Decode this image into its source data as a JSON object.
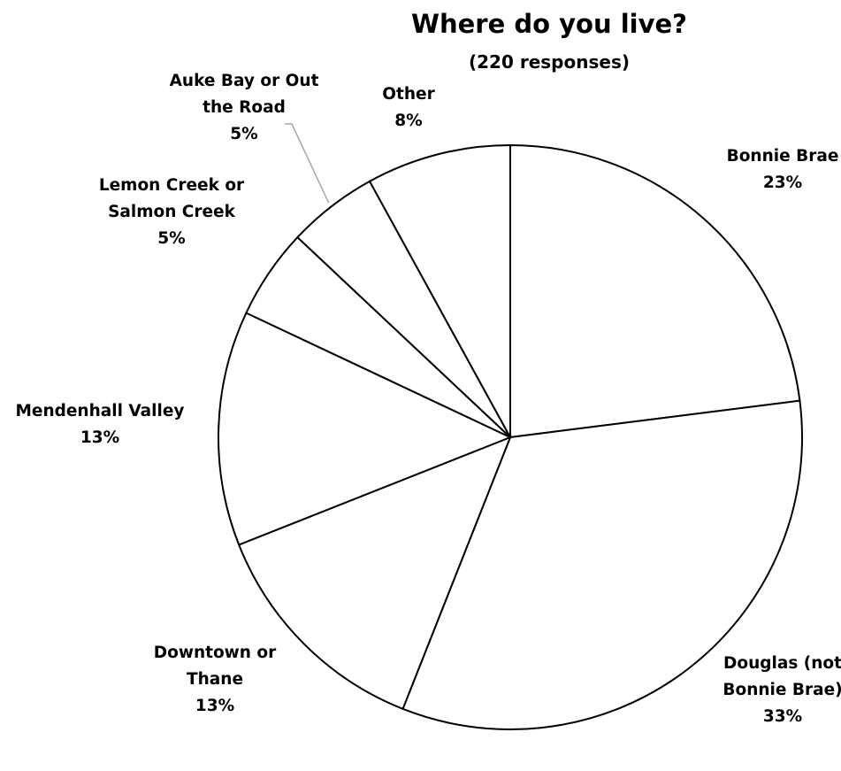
{
  "chart_data": {
    "type": "pie",
    "title": "Where do you live?",
    "subtitle": "(220 responses)",
    "slices": [
      {
        "label": [
          "Bonnie Brae"
        ],
        "value": 23,
        "value_label": "23%"
      },
      {
        "label": [
          "Douglas (not",
          "Bonnie Brae)"
        ],
        "value": 33,
        "value_label": "33%"
      },
      {
        "label": [
          "Downtown or",
          "Thane"
        ],
        "value": 13,
        "value_label": "13%"
      },
      {
        "label": [
          "Mendenhall Valley"
        ],
        "value": 13,
        "value_label": "13%"
      },
      {
        "label": [
          "Lemon Creek or",
          "Salmon Creek"
        ],
        "value": 5,
        "value_label": "5%"
      },
      {
        "label": [
          "Auke Bay or Out",
          "the Road"
        ],
        "value": 5,
        "value_label": "5%"
      },
      {
        "label": [
          "Other"
        ],
        "value": 8,
        "value_label": "8%"
      }
    ],
    "legend": "none",
    "colors": {
      "fill": "#ffffff",
      "stroke": "#000000",
      "leader_line": "#a6a6a6"
    }
  }
}
